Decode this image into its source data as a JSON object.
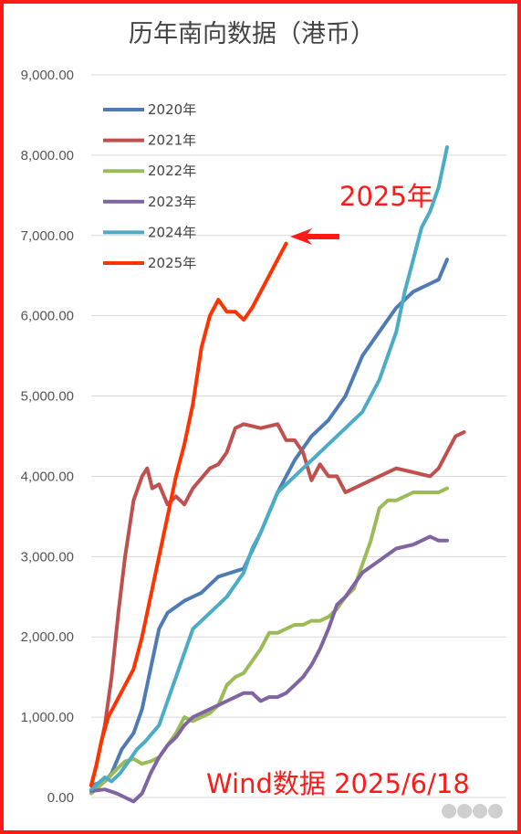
{
  "chart_data": {
    "type": "line",
    "title": "历年南向数据（港币）",
    "xlabel": "",
    "ylabel": "",
    "ylim": [
      0,
      9000
    ],
    "xlim": [
      0,
      245
    ],
    "y_ticks": [
      "0.00",
      "1,000.00",
      "2,000.00",
      "3,000.00",
      "4,000.00",
      "5,000.00",
      "6,000.00",
      "7,000.00",
      "8,000.00",
      "9,000.00"
    ],
    "y_tick_values": [
      0,
      1000,
      2000,
      3000,
      4000,
      5000,
      6000,
      7000,
      8000,
      9000
    ],
    "grid": true,
    "legend_position": "top-left",
    "annotation": "2025年",
    "source_note": "Wind数据 2025/6/18",
    "series": [
      {
        "name": "2020年",
        "color": "#4f7bb5",
        "points": [
          [
            0,
            150
          ],
          [
            8,
            200
          ],
          [
            12,
            300
          ],
          [
            18,
            600
          ],
          [
            25,
            800
          ],
          [
            30,
            1100
          ],
          [
            35,
            1600
          ],
          [
            40,
            2100
          ],
          [
            45,
            2300
          ],
          [
            55,
            2450
          ],
          [
            65,
            2550
          ],
          [
            75,
            2750
          ],
          [
            90,
            2850
          ],
          [
            100,
            3300
          ],
          [
            110,
            3800
          ],
          [
            120,
            4200
          ],
          [
            130,
            4500
          ],
          [
            140,
            4700
          ],
          [
            150,
            5000
          ],
          [
            160,
            5500
          ],
          [
            170,
            5800
          ],
          [
            180,
            6100
          ],
          [
            190,
            6300
          ],
          [
            200,
            6400
          ],
          [
            205,
            6450
          ],
          [
            210,
            6700
          ]
        ]
      },
      {
        "name": "2021年",
        "color": "#c0504d",
        "points": [
          [
            0,
            150
          ],
          [
            3,
            400
          ],
          [
            8,
            900
          ],
          [
            12,
            1500
          ],
          [
            16,
            2300
          ],
          [
            20,
            3000
          ],
          [
            25,
            3700
          ],
          [
            30,
            4000
          ],
          [
            33,
            4100
          ],
          [
            36,
            3850
          ],
          [
            40,
            3900
          ],
          [
            45,
            3650
          ],
          [
            50,
            3750
          ],
          [
            55,
            3650
          ],
          [
            60,
            3850
          ],
          [
            70,
            4100
          ],
          [
            75,
            4150
          ],
          [
            80,
            4300
          ],
          [
            85,
            4600
          ],
          [
            90,
            4650
          ],
          [
            100,
            4600
          ],
          [
            110,
            4650
          ],
          [
            115,
            4450
          ],
          [
            120,
            4450
          ],
          [
            125,
            4300
          ],
          [
            130,
            3950
          ],
          [
            135,
            4150
          ],
          [
            140,
            4000
          ],
          [
            145,
            4000
          ],
          [
            150,
            3800
          ],
          [
            160,
            3900
          ],
          [
            170,
            4000
          ],
          [
            180,
            4100
          ],
          [
            190,
            4050
          ],
          [
            200,
            4000
          ],
          [
            205,
            4100
          ],
          [
            210,
            4300
          ],
          [
            215,
            4500
          ],
          [
            220,
            4550
          ]
        ]
      },
      {
        "name": "2022年",
        "color": "#9bbb59",
        "points": [
          [
            0,
            50
          ],
          [
            8,
            200
          ],
          [
            15,
            350
          ],
          [
            20,
            450
          ],
          [
            25,
            480
          ],
          [
            30,
            420
          ],
          [
            35,
            450
          ],
          [
            40,
            500
          ],
          [
            45,
            650
          ],
          [
            50,
            800
          ],
          [
            55,
            1000
          ],
          [
            60,
            950
          ],
          [
            65,
            1000
          ],
          [
            70,
            1050
          ],
          [
            75,
            1150
          ],
          [
            80,
            1400
          ],
          [
            85,
            1500
          ],
          [
            90,
            1550
          ],
          [
            95,
            1700
          ],
          [
            100,
            1850
          ],
          [
            105,
            2050
          ],
          [
            110,
            2050
          ],
          [
            115,
            2100
          ],
          [
            120,
            2150
          ],
          [
            125,
            2150
          ],
          [
            130,
            2200
          ],
          [
            135,
            2200
          ],
          [
            140,
            2250
          ],
          [
            145,
            2350
          ],
          [
            150,
            2500
          ],
          [
            155,
            2600
          ],
          [
            160,
            2900
          ],
          [
            165,
            3200
          ],
          [
            170,
            3600
          ],
          [
            175,
            3700
          ],
          [
            180,
            3700
          ],
          [
            185,
            3750
          ],
          [
            190,
            3800
          ],
          [
            195,
            3800
          ],
          [
            200,
            3800
          ],
          [
            205,
            3800
          ],
          [
            210,
            3850
          ]
        ]
      },
      {
        "name": "2023年",
        "color": "#8064a2",
        "points": [
          [
            0,
            80
          ],
          [
            8,
            100
          ],
          [
            15,
            50
          ],
          [
            20,
            0
          ],
          [
            25,
            -50
          ],
          [
            30,
            50
          ],
          [
            35,
            300
          ],
          [
            40,
            500
          ],
          [
            45,
            650
          ],
          [
            50,
            750
          ],
          [
            55,
            900
          ],
          [
            60,
            1000
          ],
          [
            65,
            1050
          ],
          [
            70,
            1100
          ],
          [
            75,
            1150
          ],
          [
            80,
            1200
          ],
          [
            90,
            1300
          ],
          [
            95,
            1300
          ],
          [
            100,
            1200
          ],
          [
            105,
            1250
          ],
          [
            110,
            1250
          ],
          [
            115,
            1300
          ],
          [
            120,
            1400
          ],
          [
            125,
            1500
          ],
          [
            130,
            1650
          ],
          [
            135,
            1850
          ],
          [
            140,
            2100
          ],
          [
            145,
            2400
          ],
          [
            150,
            2500
          ],
          [
            155,
            2650
          ],
          [
            160,
            2800
          ],
          [
            170,
            2950
          ],
          [
            180,
            3100
          ],
          [
            190,
            3150
          ],
          [
            200,
            3250
          ],
          [
            205,
            3200
          ],
          [
            210,
            3200
          ]
        ]
      },
      {
        "name": "2024年",
        "color": "#4bacc6",
        "points": [
          [
            0,
            100
          ],
          [
            8,
            250
          ],
          [
            12,
            200
          ],
          [
            17,
            300
          ],
          [
            22,
            450
          ],
          [
            27,
            600
          ],
          [
            32,
            700
          ],
          [
            40,
            900
          ],
          [
            45,
            1200
          ],
          [
            50,
            1500
          ],
          [
            55,
            1800
          ],
          [
            60,
            2100
          ],
          [
            70,
            2300
          ],
          [
            80,
            2500
          ],
          [
            90,
            2800
          ],
          [
            95,
            3100
          ],
          [
            100,
            3300
          ],
          [
            110,
            3800
          ],
          [
            120,
            4000
          ],
          [
            125,
            4100
          ],
          [
            130,
            4200
          ],
          [
            140,
            4400
          ],
          [
            150,
            4600
          ],
          [
            160,
            4800
          ],
          [
            170,
            5200
          ],
          [
            180,
            5800
          ],
          [
            185,
            6300
          ],
          [
            190,
            6700
          ],
          [
            195,
            7100
          ],
          [
            200,
            7300
          ],
          [
            205,
            7600
          ],
          [
            210,
            8100
          ]
        ]
      },
      {
        "name": "2025年",
        "color": "#ff3300",
        "points": [
          [
            0,
            150
          ],
          [
            3,
            400
          ],
          [
            6,
            700
          ],
          [
            10,
            1000
          ],
          [
            15,
            1200
          ],
          [
            20,
            1400
          ],
          [
            25,
            1600
          ],
          [
            30,
            2000
          ],
          [
            35,
            2500
          ],
          [
            40,
            3000
          ],
          [
            45,
            3500
          ],
          [
            50,
            4000
          ],
          [
            55,
            4400
          ],
          [
            60,
            4900
          ],
          [
            65,
            5600
          ],
          [
            70,
            6000
          ],
          [
            75,
            6200
          ],
          [
            80,
            6050
          ],
          [
            85,
            6050
          ],
          [
            90,
            5950
          ],
          [
            95,
            6100
          ],
          [
            100,
            6300
          ],
          [
            105,
            6500
          ],
          [
            110,
            6700
          ],
          [
            115,
            6900
          ]
        ]
      }
    ]
  }
}
